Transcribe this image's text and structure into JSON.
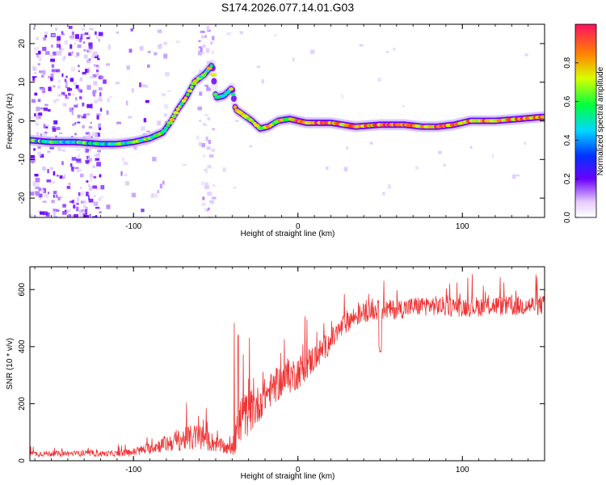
{
  "page_title": "S174.2026.077.14.01.G03",
  "colors": {
    "line": "#ee3333",
    "track_low": "#6a00ff",
    "track_high": "#ee2244",
    "axis": "#000000"
  },
  "chart_data": [
    {
      "type": "heatmap",
      "title": "",
      "xlabel": "Height of straight line (km)",
      "ylabel": "Frequency (Hz)",
      "xlim": [
        -163,
        150
      ],
      "ylim": [
        -25,
        25
      ],
      "x_ticks": [
        {
          "value": -100,
          "label": "-100"
        },
        {
          "value": 0,
          "label": "0"
        },
        {
          "value": 100,
          "label": "100"
        }
      ],
      "y_ticks": [
        {
          "value": -20,
          "label": "-20"
        },
        {
          "value": -10,
          "label": "-10"
        },
        {
          "value": 0,
          "label": "0"
        },
        {
          "value": 10,
          "label": "10"
        },
        {
          "value": 20,
          "label": "20"
        }
      ],
      "colorbar": {
        "label": "Normalized spectral amplitude",
        "range": [
          0,
          1
        ],
        "ticks": [
          {
            "value": 0.0,
            "label": "0.0"
          },
          {
            "value": 0.2,
            "label": "0.2"
          },
          {
            "value": 0.4,
            "label": "0.4"
          },
          {
            "value": 0.6,
            "label": "0.6"
          },
          {
            "value": 0.8,
            "label": "0.8"
          }
        ]
      },
      "track": [
        {
          "x": -163,
          "y": -5
        },
        {
          "x": -150,
          "y": -5.5
        },
        {
          "x": -135,
          "y": -5.5
        },
        {
          "x": -120,
          "y": -6
        },
        {
          "x": -110,
          "y": -6
        },
        {
          "x": -100,
          "y": -5.5
        },
        {
          "x": -90,
          "y": -4.5
        },
        {
          "x": -82,
          "y": -3
        },
        {
          "x": -77,
          "y": 0
        },
        {
          "x": -73,
          "y": 3
        },
        {
          "x": -68,
          "y": 6
        },
        {
          "x": -63,
          "y": 10
        },
        {
          "x": -57,
          "y": 12
        },
        {
          "x": -52,
          "y": 14.5
        },
        {
          "x": -50,
          "y": 6
        },
        {
          "x": -45,
          "y": 6.5
        },
        {
          "x": -40,
          "y": 8.5
        },
        {
          "x": -38,
          "y": 3
        },
        {
          "x": -33,
          "y": 1.5
        },
        {
          "x": -28,
          "y": 0
        },
        {
          "x": -23,
          "y": -2
        },
        {
          "x": -18,
          "y": -1.5
        },
        {
          "x": -12,
          "y": 0
        },
        {
          "x": -5,
          "y": 0.5
        },
        {
          "x": 5,
          "y": -0.5
        },
        {
          "x": 20,
          "y": -0.5
        },
        {
          "x": 35,
          "y": -1.5
        },
        {
          "x": 50,
          "y": -1
        },
        {
          "x": 65,
          "y": -1
        },
        {
          "x": 75,
          "y": -1.5
        },
        {
          "x": 85,
          "y": -1.5
        },
        {
          "x": 95,
          "y": -1
        },
        {
          "x": 105,
          "y": 0
        },
        {
          "x": 120,
          "y": 0
        },
        {
          "x": 135,
          "y": 0.5
        },
        {
          "x": 148,
          "y": 1
        }
      ]
    },
    {
      "type": "line",
      "title": "",
      "xlabel": "Height of straight line (km)",
      "ylabel": "SNR (10 * v/v)",
      "xlim": [
        -163,
        150
      ],
      "ylim": [
        0,
        680
      ],
      "x_ticks": [
        {
          "value": -100,
          "label": "-100"
        },
        {
          "value": 0,
          "label": "0"
        },
        {
          "value": 100,
          "label": "100"
        }
      ],
      "y_ticks": [
        {
          "value": 0,
          "label": "0"
        },
        {
          "value": 200,
          "label": "200"
        },
        {
          "value": 400,
          "label": "400"
        },
        {
          "value": 600,
          "label": "600"
        }
      ],
      "series": [
        {
          "name": "SNR",
          "x": [
            -163,
            -150,
            -130,
            -110,
            -100,
            -90,
            -80,
            -70,
            -60,
            -50,
            -42,
            -38,
            -35,
            -30,
            -25,
            -20,
            -10,
            0,
            10,
            20,
            30,
            40,
            50,
            60,
            70,
            80,
            90,
            100,
            110,
            120,
            130,
            140,
            150
          ],
          "values": [
            25,
            25,
            25,
            25,
            30,
            45,
            60,
            75,
            85,
            60,
            40,
            80,
            140,
            170,
            190,
            230,
            280,
            310,
            360,
            420,
            490,
            520,
            530,
            530,
            540,
            545,
            540,
            540,
            540,
            545,
            540,
            545,
            545
          ],
          "noise": [
            10,
            10,
            10,
            10,
            15,
            20,
            30,
            40,
            50,
            30,
            20,
            60,
            80,
            80,
            70,
            60,
            60,
            60,
            50,
            40,
            40,
            35,
            35,
            35,
            35,
            35,
            35,
            35,
            35,
            35,
            35,
            35,
            35
          ]
        }
      ]
    }
  ]
}
